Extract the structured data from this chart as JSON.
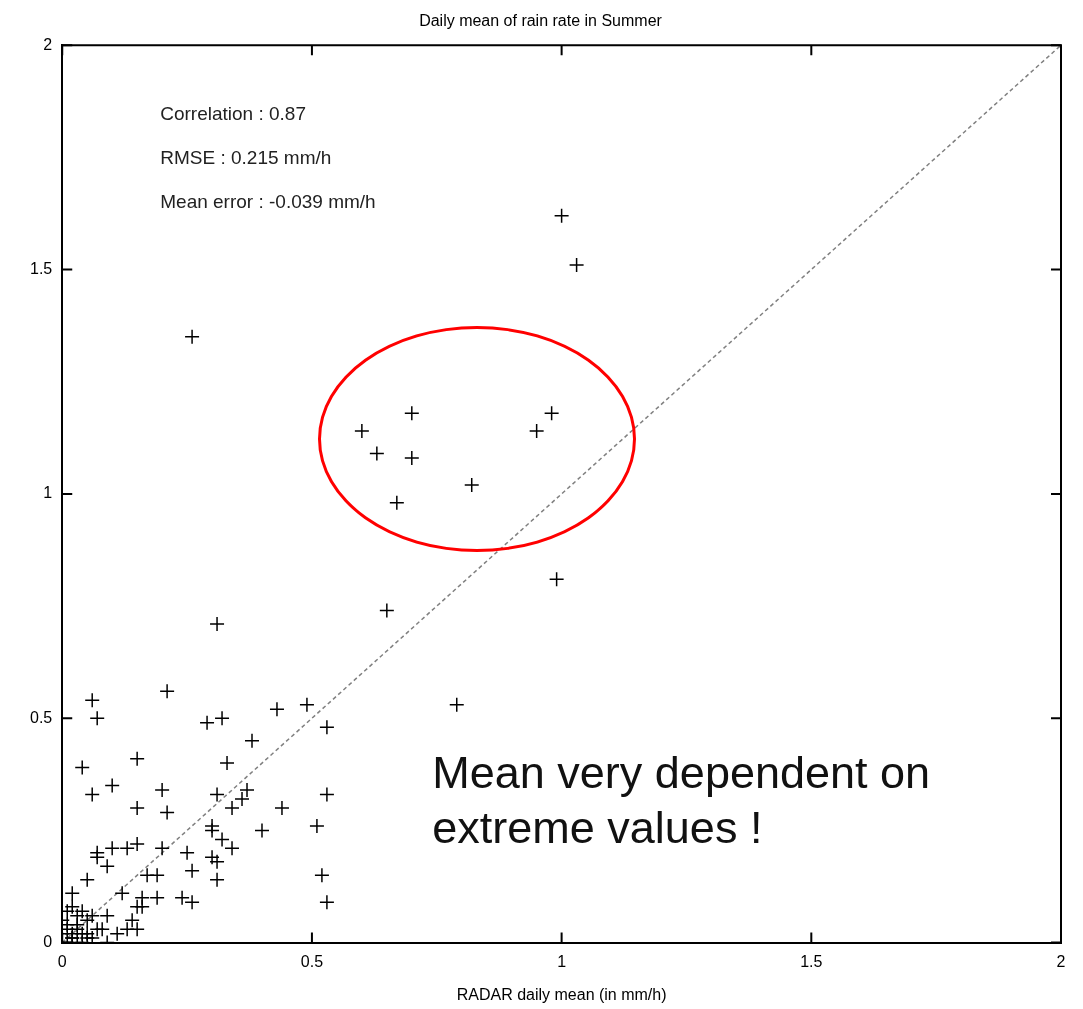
{
  "chart_data": {
    "type": "scatter",
    "title": "Daily mean of rain rate in Summer",
    "xlabel": "RADAR daily mean (in mm/h)",
    "xlim": [
      0,
      2
    ],
    "ylim": [
      0,
      2
    ],
    "xticks": [
      0,
      0.5,
      1,
      1.5,
      2
    ],
    "yticks": [
      0,
      0.5,
      1,
      1.5,
      2
    ],
    "grid": false,
    "legend": false,
    "marker": "cross",
    "annotations": [
      "Correlation : 0.87",
      "RMSE : 0.215 mm/h",
      "Mean error : -0.039 mm/h",
      "Mean very dependent on extreme values !"
    ],
    "series": [
      {
        "color": "#000000",
        "x": [
          1.0,
          1.03,
          0.26,
          0.7,
          0.6,
          0.63,
          0.7,
          0.67,
          0.82,
          0.98,
          0.95,
          0.99,
          0.65,
          0.31,
          0.79,
          0.21,
          0.06,
          0.07,
          0.29,
          0.32,
          0.43,
          0.49,
          0.53,
          0.04,
          0.15,
          0.06,
          0.1,
          0.33,
          0.38,
          0.2,
          0.15,
          0.21,
          0.31,
          0.37,
          0.36,
          0.34,
          0.44,
          0.53,
          0.51,
          0.4,
          0.3,
          0.3,
          0.32,
          0.34,
          0.3,
          0.31,
          0.31,
          0.26,
          0.25,
          0.2,
          0.15,
          0.13,
          0.1,
          0.07,
          0.07,
          0.09,
          0.05,
          0.17,
          0.19,
          0.02,
          0.12,
          0.16,
          0.19,
          0.24,
          0.26,
          0.16,
          0.15,
          0.52,
          0.53,
          0.14,
          0.09,
          0.15,
          0.13,
          0.11,
          0.09,
          0.07,
          0.01,
          0.02,
          0.03,
          0.04,
          0.05,
          0.06,
          0.0,
          0.01,
          0.02,
          0.03,
          0.04,
          0.0,
          0.01,
          0.02,
          0.03,
          0.05,
          0.06,
          0.08,
          0.0,
          0.01,
          0.02,
          0.04,
          0.03,
          0.05
        ],
        "values": [
          1.62,
          1.51,
          1.35,
          1.18,
          1.14,
          1.09,
          1.08,
          0.98,
          1.02,
          1.18,
          1.14,
          0.81,
          0.74,
          0.71,
          0.53,
          0.56,
          0.54,
          0.5,
          0.49,
          0.5,
          0.52,
          0.53,
          0.48,
          0.39,
          0.41,
          0.33,
          0.35,
          0.4,
          0.45,
          0.34,
          0.3,
          0.29,
          0.33,
          0.34,
          0.32,
          0.3,
          0.3,
          0.33,
          0.26,
          0.25,
          0.26,
          0.25,
          0.23,
          0.21,
          0.19,
          0.18,
          0.14,
          0.16,
          0.2,
          0.21,
          0.22,
          0.21,
          0.21,
          0.2,
          0.19,
          0.17,
          0.14,
          0.15,
          0.15,
          0.11,
          0.11,
          0.1,
          0.1,
          0.1,
          0.09,
          0.08,
          0.08,
          0.15,
          0.09,
          0.05,
          0.06,
          0.03,
          0.03,
          0.02,
          0.0,
          0.03,
          0.07,
          0.08,
          0.06,
          0.07,
          0.05,
          0.06,
          0.02,
          0.03,
          0.01,
          0.03,
          0.02,
          0.0,
          0.0,
          0.01,
          0.0,
          0.02,
          0.01,
          0.03,
          0.05,
          0.04,
          0.02,
          0.0,
          0.04,
          0.01
        ]
      },
      {
        "type": "line",
        "color": "#808080",
        "line_style": "dashed",
        "marker": "none",
        "x": [
          0,
          2
        ],
        "values": [
          0,
          2
        ]
      }
    ]
  }
}
